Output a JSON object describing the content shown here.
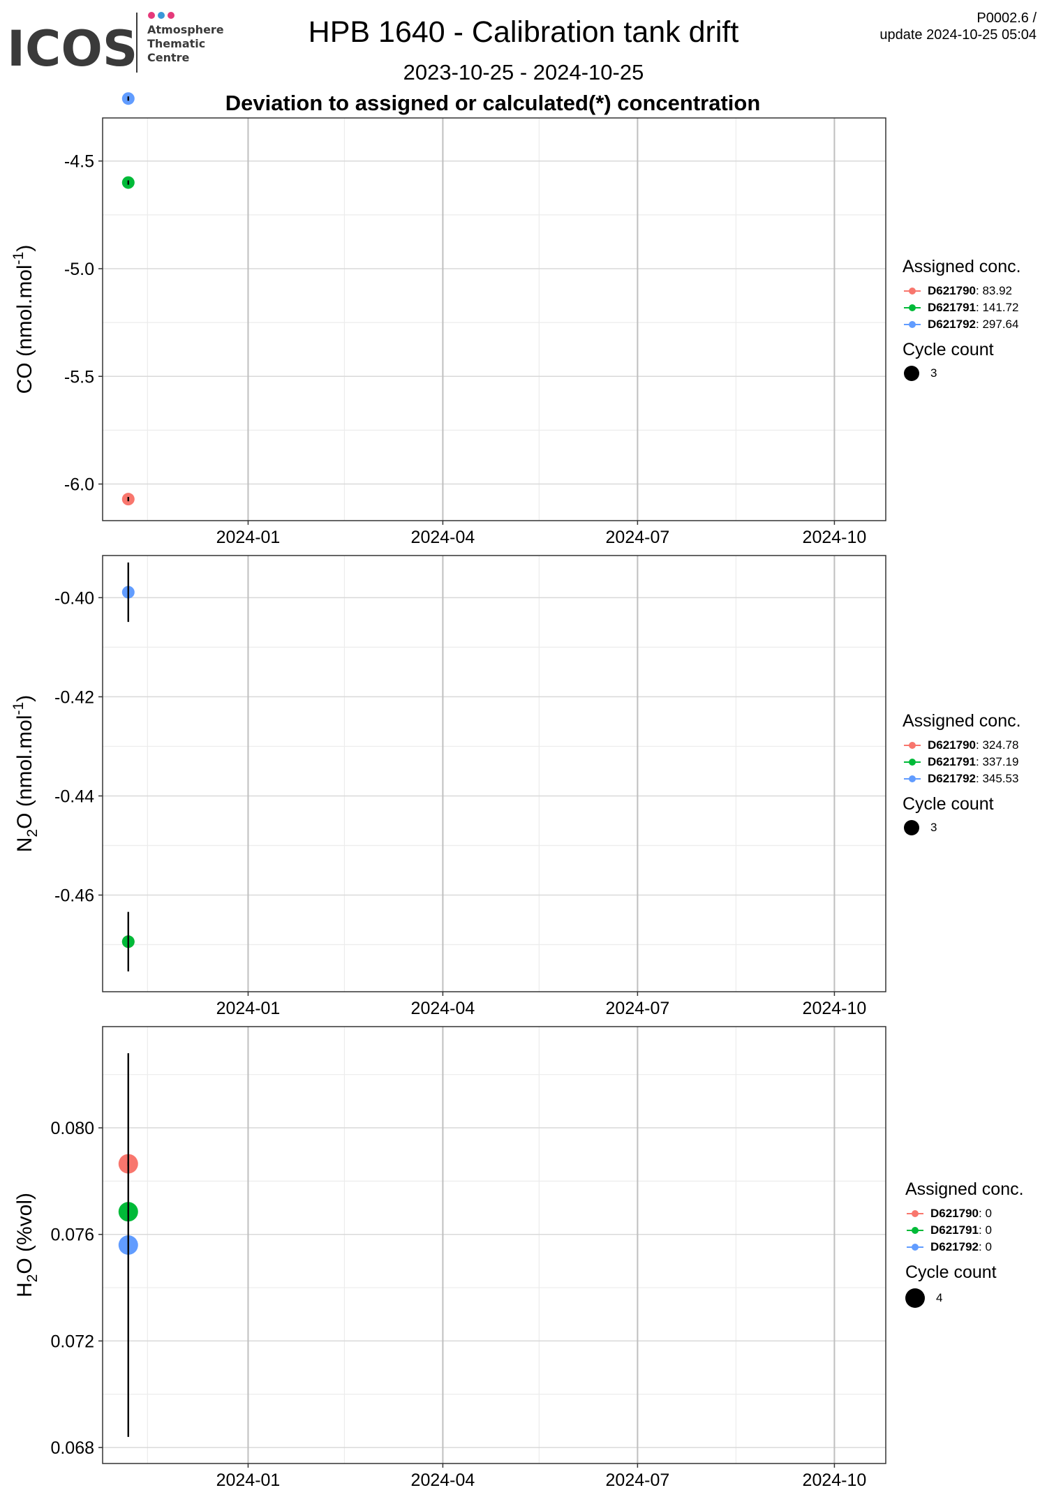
{
  "header": {
    "title": "HPB 1640 - Calibration tank drift",
    "range": "2023-10-25 - 2024-10-25",
    "subtitle": "Deviation to assigned or calculated(*) concentration",
    "version": "P0002.6 /",
    "update": "update  2024-10-25 05:04"
  },
  "logo": {
    "text": "ICOS",
    "line1": "Atmosphere",
    "line2": "Thematic",
    "line3": "Centre",
    "dot_colors": [
      "#e5397a",
      "#3a97d8",
      "#e5397a"
    ]
  },
  "colors": {
    "D621790": "#f8766d",
    "D621791": "#00ba38",
    "D621792": "#619cff",
    "panel_border": "#333333",
    "grid_major": "#d9d9d9",
    "grid_minor": "#ececec",
    "vline": "#bfbfbf"
  },
  "x_ticks": [
    "2024-01",
    "2024-04",
    "2024-07",
    "2024-10"
  ],
  "chart_data": [
    {
      "type": "scatter",
      "xlim": [
        "2023-10-25",
        "2024-10-25"
      ],
      "ylabel": "CO (nmol.mol-1)",
      "ylim": [
        -6.17,
        -4.3
      ],
      "y_ticks": [
        -4.5,
        -5.0,
        -5.5,
        -6.0
      ],
      "y_tick_labels": [
        "-4.5",
        "-5.0",
        "-5.5",
        "-6.0"
      ],
      "series": [
        {
          "name": "D621790",
          "x": "2023-11-06",
          "y": -6.07,
          "err": 0.01
        },
        {
          "name": "D621791",
          "x": "2023-11-06",
          "y": -4.6,
          "err": 0.01
        },
        {
          "name": "D621792",
          "x": "2023-11-06",
          "y": -4.21,
          "err": 0.01
        }
      ],
      "legend": {
        "title": "Assigned conc.",
        "entries": [
          {
            "id": "D621790",
            "value": ": 83.92"
          },
          {
            "id": "D621791",
            "value": ": 141.72"
          },
          {
            "id": "D621792",
            "value": ": 297.64"
          }
        ],
        "cycle_title": "Cycle count",
        "cycle_value": "3"
      }
    },
    {
      "type": "scatter",
      "xlim": [
        "2023-10-25",
        "2024-10-25"
      ],
      "ylabel": "N2O (nmol.mol-1)",
      "ylim": [
        -0.4795,
        -0.3915
      ],
      "y_ticks": [
        -0.4,
        -0.42,
        -0.44,
        -0.46
      ],
      "y_tick_labels": [
        "-0.40",
        "-0.42",
        "-0.44",
        "-0.46"
      ],
      "series": [
        {
          "name": "D621790",
          "x": "2023-11-06",
          "y": -0.4694,
          "err": 0.0
        },
        {
          "name": "D621791",
          "x": "2023-11-06",
          "y": -0.4694,
          "err": 0.006
        },
        {
          "name": "D621792",
          "x": "2023-11-06",
          "y": -0.3989,
          "err": 0.006
        }
      ],
      "legend": {
        "title": "Assigned conc.",
        "entries": [
          {
            "id": "D621790",
            "value": ": 324.78"
          },
          {
            "id": "D621791",
            "value": ": 337.19"
          },
          {
            "id": "D621792",
            "value": ": 345.53"
          }
        ],
        "cycle_title": "Cycle count",
        "cycle_value": "3"
      }
    },
    {
      "type": "scatter",
      "xlim": [
        "2023-10-25",
        "2024-10-25"
      ],
      "ylabel": "H2O (%vol)",
      "ylim": [
        0.0674,
        0.0838
      ],
      "y_ticks": [
        0.08,
        0.076,
        0.072,
        0.068
      ],
      "y_tick_labels": [
        "0.080",
        "0.076",
        "0.072",
        "0.068"
      ],
      "series": [
        {
          "name": "D621790",
          "x": "2023-11-06",
          "y": 0.07865,
          "err": 0.0
        },
        {
          "name": "D621791",
          "x": "2023-11-06",
          "y": 0.07685,
          "err": 0.0
        },
        {
          "name": "D621792",
          "x": "2023-11-06",
          "y": 0.0756,
          "err": 0.0072
        }
      ],
      "legend": {
        "title": "Assigned conc.",
        "entries": [
          {
            "id": "D621790",
            "value": ": 0"
          },
          {
            "id": "D621791",
            "value": ": 0"
          },
          {
            "id": "D621792",
            "value": ": 0"
          }
        ],
        "cycle_title": "Cycle count",
        "cycle_value": "4"
      }
    }
  ]
}
